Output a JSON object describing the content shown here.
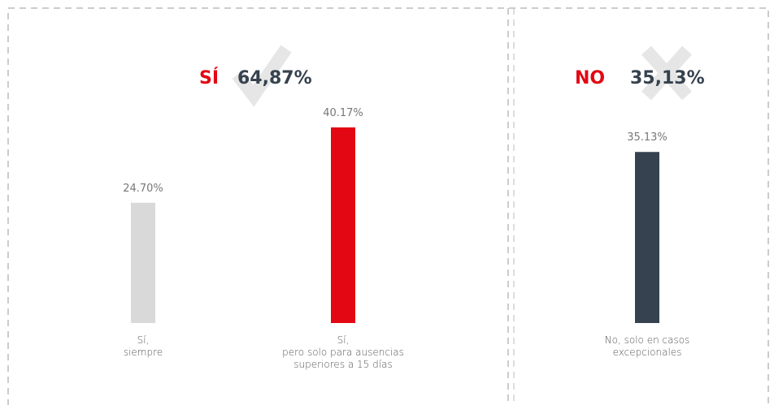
{
  "chart_data": {
    "type": "bar",
    "groups": [
      {
        "name": "SÍ",
        "label": "64,87%"
      },
      {
        "name": "NO",
        "label": "35,13%"
      }
    ],
    "categories": [
      "Sí,\nsiempre",
      "Sí,\npero solo para ausencias\nsuperiores a 15 días",
      "No, solo en casos\nexcepcionales"
    ],
    "values": [
      24.7,
      40.17,
      35.13
    ],
    "value_labels": [
      "24.70%",
      "40.17%",
      "35.13%"
    ],
    "colors": [
      "#d9d9d9",
      "#e30613",
      "#36424f"
    ],
    "ylim": [
      0,
      45
    ]
  }
}
